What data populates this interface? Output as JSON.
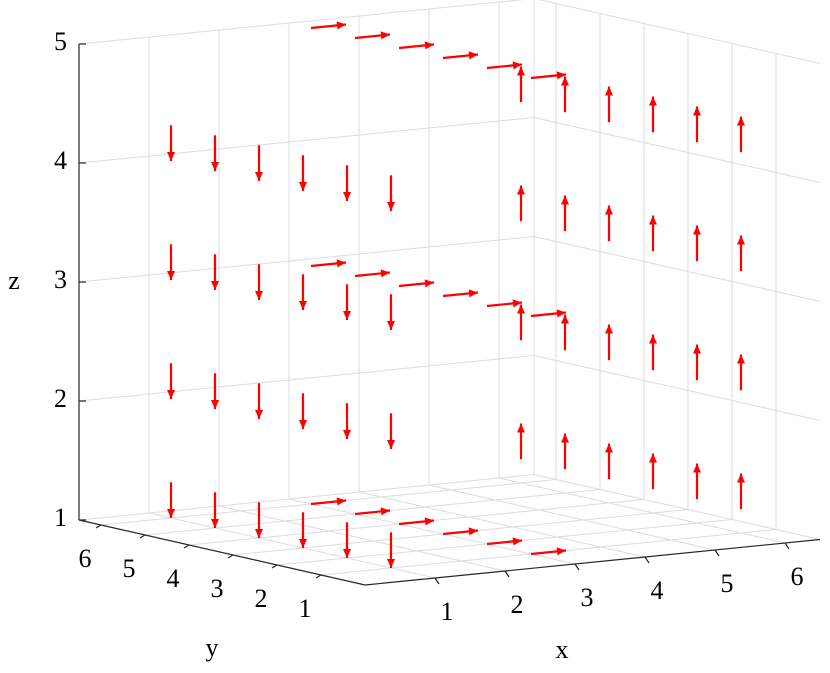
{
  "chart_data": {
    "type": "quiver3",
    "color": "#ff0000",
    "xlabel": "x",
    "ylabel": "y",
    "zlabel": "z",
    "xlim": [
      0,
      6.5
    ],
    "ylim": [
      0,
      6.5
    ],
    "zlim": [
      1,
      5
    ],
    "xticks": [
      1,
      2,
      3,
      4,
      5,
      6
    ],
    "yticks": [
      1,
      2,
      3,
      4,
      5,
      6
    ],
    "zticks": [
      1,
      2,
      3,
      4,
      5
    ],
    "grid": true,
    "vectors": [
      {
        "x": 1,
        "y": 1,
        "z": 1.3,
        "u": 0,
        "v": 0,
        "w": -0.3
      },
      {
        "x": 1,
        "y": 2,
        "z": 1.3,
        "u": 0,
        "v": 0,
        "w": -0.3
      },
      {
        "x": 1,
        "y": 3,
        "z": 1.3,
        "u": 0,
        "v": 0,
        "w": -0.3
      },
      {
        "x": 1,
        "y": 4,
        "z": 1.3,
        "u": 0,
        "v": 0,
        "w": -0.3
      },
      {
        "x": 1,
        "y": 5,
        "z": 1.3,
        "u": 0,
        "v": 0,
        "w": -0.3
      },
      {
        "x": 1,
        "y": 6,
        "z": 1.3,
        "u": 0,
        "v": 0,
        "w": -0.3
      },
      {
        "x": 1,
        "y": 1,
        "z": 2.3,
        "u": 0,
        "v": 0,
        "w": -0.3
      },
      {
        "x": 1,
        "y": 2,
        "z": 2.3,
        "u": 0,
        "v": 0,
        "w": -0.3
      },
      {
        "x": 1,
        "y": 3,
        "z": 2.3,
        "u": 0,
        "v": 0,
        "w": -0.3
      },
      {
        "x": 1,
        "y": 4,
        "z": 2.3,
        "u": 0,
        "v": 0,
        "w": -0.3
      },
      {
        "x": 1,
        "y": 5,
        "z": 2.3,
        "u": 0,
        "v": 0,
        "w": -0.3
      },
      {
        "x": 1,
        "y": 6,
        "z": 2.3,
        "u": 0,
        "v": 0,
        "w": -0.3
      },
      {
        "x": 1,
        "y": 1,
        "z": 3.3,
        "u": 0,
        "v": 0,
        "w": -0.3
      },
      {
        "x": 1,
        "y": 2,
        "z": 3.3,
        "u": 0,
        "v": 0,
        "w": -0.3
      },
      {
        "x": 1,
        "y": 3,
        "z": 3.3,
        "u": 0,
        "v": 0,
        "w": -0.3
      },
      {
        "x": 1,
        "y": 4,
        "z": 3.3,
        "u": 0,
        "v": 0,
        "w": -0.3
      },
      {
        "x": 1,
        "y": 5,
        "z": 3.3,
        "u": 0,
        "v": 0,
        "w": -0.3
      },
      {
        "x": 1,
        "y": 6,
        "z": 3.3,
        "u": 0,
        "v": 0,
        "w": -0.3
      },
      {
        "x": 1,
        "y": 1,
        "z": 4.3,
        "u": 0,
        "v": 0,
        "w": -0.3
      },
      {
        "x": 1,
        "y": 2,
        "z": 4.3,
        "u": 0,
        "v": 0,
        "w": -0.3
      },
      {
        "x": 1,
        "y": 3,
        "z": 4.3,
        "u": 0,
        "v": 0,
        "w": -0.3
      },
      {
        "x": 1,
        "y": 4,
        "z": 4.3,
        "u": 0,
        "v": 0,
        "w": -0.3
      },
      {
        "x": 1,
        "y": 5,
        "z": 4.3,
        "u": 0,
        "v": 0,
        "w": -0.3
      },
      {
        "x": 1,
        "y": 6,
        "z": 4.3,
        "u": 0,
        "v": 0,
        "w": -0.3
      },
      {
        "x": 6,
        "y": 1,
        "z": 1.2,
        "u": 0,
        "v": 0,
        "w": 0.3
      },
      {
        "x": 6,
        "y": 2,
        "z": 1.2,
        "u": 0,
        "v": 0,
        "w": 0.3
      },
      {
        "x": 6,
        "y": 3,
        "z": 1.2,
        "u": 0,
        "v": 0,
        "w": 0.3
      },
      {
        "x": 6,
        "y": 4,
        "z": 1.2,
        "u": 0,
        "v": 0,
        "w": 0.3
      },
      {
        "x": 6,
        "y": 5,
        "z": 1.2,
        "u": 0,
        "v": 0,
        "w": 0.3
      },
      {
        "x": 6,
        "y": 6,
        "z": 1.2,
        "u": 0,
        "v": 0,
        "w": 0.3
      },
      {
        "x": 6,
        "y": 1,
        "z": 2.2,
        "u": 0,
        "v": 0,
        "w": 0.3
      },
      {
        "x": 6,
        "y": 2,
        "z": 2.2,
        "u": 0,
        "v": 0,
        "w": 0.3
      },
      {
        "x": 6,
        "y": 3,
        "z": 2.2,
        "u": 0,
        "v": 0,
        "w": 0.3
      },
      {
        "x": 6,
        "y": 4,
        "z": 2.2,
        "u": 0,
        "v": 0,
        "w": 0.3
      },
      {
        "x": 6,
        "y": 5,
        "z": 2.2,
        "u": 0,
        "v": 0,
        "w": 0.3
      },
      {
        "x": 6,
        "y": 6,
        "z": 2.2,
        "u": 0,
        "v": 0,
        "w": 0.3
      },
      {
        "x": 6,
        "y": 1,
        "z": 3.2,
        "u": 0,
        "v": 0,
        "w": 0.3
      },
      {
        "x": 6,
        "y": 2,
        "z": 3.2,
        "u": 0,
        "v": 0,
        "w": 0.3
      },
      {
        "x": 6,
        "y": 3,
        "z": 3.2,
        "u": 0,
        "v": 0,
        "w": 0.3
      },
      {
        "x": 6,
        "y": 4,
        "z": 3.2,
        "u": 0,
        "v": 0,
        "w": 0.3
      },
      {
        "x": 6,
        "y": 5,
        "z": 3.2,
        "u": 0,
        "v": 0,
        "w": 0.3
      },
      {
        "x": 6,
        "y": 6,
        "z": 3.2,
        "u": 0,
        "v": 0,
        "w": 0.3
      },
      {
        "x": 6,
        "y": 1,
        "z": 4.2,
        "u": 0,
        "v": 0,
        "w": 0.3
      },
      {
        "x": 6,
        "y": 2,
        "z": 4.2,
        "u": 0,
        "v": 0,
        "w": 0.3
      },
      {
        "x": 6,
        "y": 3,
        "z": 4.2,
        "u": 0,
        "v": 0,
        "w": 0.3
      },
      {
        "x": 6,
        "y": 4,
        "z": 4.2,
        "u": 0,
        "v": 0,
        "w": 0.3
      },
      {
        "x": 6,
        "y": 5,
        "z": 4.2,
        "u": 0,
        "v": 0,
        "w": 0.3
      },
      {
        "x": 6,
        "y": 6,
        "z": 4.2,
        "u": 0,
        "v": 0,
        "w": 0.3
      },
      {
        "x": 3,
        "y": 1,
        "z": 1,
        "u": 0.5,
        "v": 0,
        "w": 0
      },
      {
        "x": 3,
        "y": 2,
        "z": 1,
        "u": 0.5,
        "v": 0,
        "w": 0
      },
      {
        "x": 3,
        "y": 3,
        "z": 1,
        "u": 0.5,
        "v": 0,
        "w": 0
      },
      {
        "x": 3,
        "y": 4,
        "z": 1,
        "u": 0.5,
        "v": 0,
        "w": 0
      },
      {
        "x": 3,
        "y": 5,
        "z": 1,
        "u": 0.5,
        "v": 0,
        "w": 0
      },
      {
        "x": 3,
        "y": 6,
        "z": 1,
        "u": 0.5,
        "v": 0,
        "w": 0
      },
      {
        "x": 3,
        "y": 1,
        "z": 3,
        "u": 0.5,
        "v": 0,
        "w": 0
      },
      {
        "x": 3,
        "y": 2,
        "z": 3,
        "u": 0.5,
        "v": 0,
        "w": 0
      },
      {
        "x": 3,
        "y": 3,
        "z": 3,
        "u": 0.5,
        "v": 0,
        "w": 0
      },
      {
        "x": 3,
        "y": 4,
        "z": 3,
        "u": 0.5,
        "v": 0,
        "w": 0
      },
      {
        "x": 3,
        "y": 5,
        "z": 3,
        "u": 0.5,
        "v": 0,
        "w": 0
      },
      {
        "x": 3,
        "y": 6,
        "z": 3,
        "u": 0.5,
        "v": 0,
        "w": 0
      },
      {
        "x": 3,
        "y": 1,
        "z": 5,
        "u": 0.5,
        "v": 0,
        "w": 0
      },
      {
        "x": 3,
        "y": 2,
        "z": 5,
        "u": 0.5,
        "v": 0,
        "w": 0
      },
      {
        "x": 3,
        "y": 3,
        "z": 5,
        "u": 0.5,
        "v": 0,
        "w": 0
      },
      {
        "x": 3,
        "y": 4,
        "z": 5,
        "u": 0.5,
        "v": 0,
        "w": 0
      },
      {
        "x": 3,
        "y": 5,
        "z": 5,
        "u": 0.5,
        "v": 0,
        "w": 0
      },
      {
        "x": 3,
        "y": 6,
        "z": 5,
        "u": 0.5,
        "v": 0,
        "w": 0
      }
    ]
  }
}
